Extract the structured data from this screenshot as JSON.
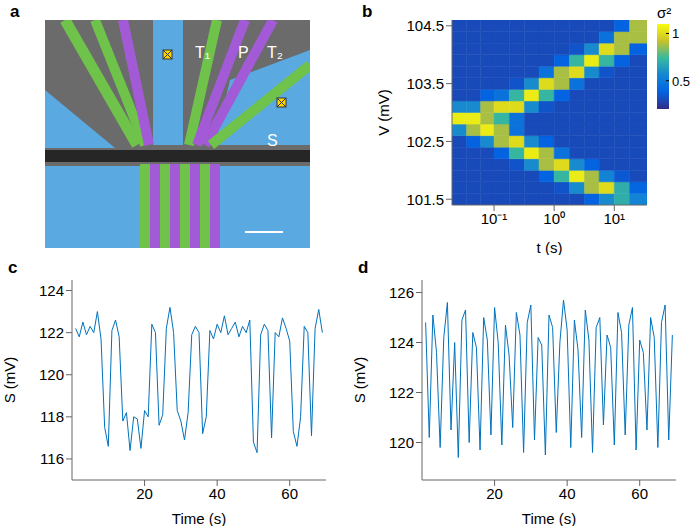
{
  "image": {
    "panel_label": "a",
    "labels": [
      "T₁",
      "P",
      "T₂",
      "S"
    ]
  },
  "chart_data": [
    {
      "type": "heatmap",
      "panel_label": "b",
      "x_label": "t (s)",
      "y_label": "V (mV)",
      "log": "x",
      "xlim": [
        0.02,
        35
      ],
      "xticks": [
        {
          "value": 0.1,
          "label": "10⁻¹"
        },
        {
          "value": 1,
          "label": "10⁰"
        },
        {
          "value": 10,
          "label": "10¹"
        }
      ],
      "ylim": [
        101.4,
        104.6
      ],
      "yticks": [
        101.5,
        102.5,
        103.5,
        104.5
      ],
      "x_edges": [
        0.02,
        0.035,
        0.06,
        0.1,
        0.18,
        0.32,
        0.56,
        1,
        1.8,
        3.2,
        5.6,
        10,
        18,
        35
      ],
      "y_edges": [
        101.4,
        101.6,
        101.8,
        102,
        102.2,
        102.4,
        102.6,
        102.8,
        103,
        103.2,
        103.4,
        103.6,
        103.8,
        104,
        104.2,
        104.4,
        104.6
      ],
      "cells": [
        [
          0.3,
          0.3,
          0.3,
          0.3,
          0.3,
          0.3,
          0.3,
          0.3,
          0.3,
          0.38,
          0.58,
          0.7,
          0.55
        ],
        [
          0.3,
          0.3,
          0.3,
          0.3,
          0.3,
          0.3,
          0.3,
          0.33,
          0.58,
          0.88,
          1.0,
          0.7,
          0.4
        ],
        [
          0.3,
          0.3,
          0.3,
          0.3,
          0.3,
          0.3,
          0.38,
          0.73,
          1.05,
          0.88,
          0.55,
          0.35,
          0.3
        ],
        [
          0.3,
          0.3,
          0.3,
          0.3,
          0.33,
          0.58,
          0.88,
          1.0,
          0.58,
          0.38,
          0.3,
          0.3,
          0.3
        ],
        [
          0.3,
          0.3,
          0.3,
          0.38,
          0.73,
          1.05,
          0.88,
          0.46,
          0.3,
          0.3,
          0.3,
          0.3,
          0.3
        ],
        [
          0.3,
          0.38,
          0.58,
          0.88,
          1.0,
          0.58,
          0.38,
          0.3,
          0.3,
          0.3,
          0.3,
          0.3,
          0.3
        ],
        [
          0.58,
          0.88,
          1.05,
          0.88,
          0.46,
          0.3,
          0.3,
          0.3,
          0.3,
          0.3,
          0.3,
          0.3,
          0.3
        ],
        [
          1.05,
          1.05,
          0.88,
          0.73,
          0.46,
          0.3,
          0.3,
          0.3,
          0.3,
          0.3,
          0.3,
          0.3,
          0.3
        ],
        [
          0.58,
          0.58,
          0.88,
          1.0,
          1.0,
          0.58,
          0.33,
          0.3,
          0.3,
          0.3,
          0.3,
          0.3,
          0.3
        ],
        [
          0.3,
          0.3,
          0.38,
          0.46,
          0.73,
          1.05,
          0.73,
          0.38,
          0.3,
          0.3,
          0.3,
          0.3,
          0.3
        ],
        [
          0.3,
          0.3,
          0.3,
          0.3,
          0.33,
          0.58,
          1.0,
          0.88,
          0.46,
          0.3,
          0.3,
          0.3,
          0.3
        ],
        [
          0.3,
          0.3,
          0.3,
          0.3,
          0.3,
          0.3,
          0.46,
          0.88,
          1.0,
          0.58,
          0.33,
          0.3,
          0.3
        ],
        [
          0.3,
          0.3,
          0.3,
          0.3,
          0.3,
          0.3,
          0.3,
          0.38,
          0.73,
          1.05,
          0.73,
          0.38,
          0.3
        ],
        [
          0.3,
          0.3,
          0.3,
          0.3,
          0.3,
          0.3,
          0.3,
          0.3,
          0.33,
          0.58,
          1.0,
          0.88,
          0.38
        ],
        [
          0.3,
          0.3,
          0.3,
          0.3,
          0.3,
          0.3,
          0.3,
          0.3,
          0.3,
          0.3,
          0.46,
          0.88,
          0.88
        ],
        [
          0.3,
          0.3,
          0.3,
          0.3,
          0.3,
          0.3,
          0.3,
          0.3,
          0.3,
          0.3,
          0.3,
          0.38,
          0.88
        ]
      ],
      "colorbar": {
        "label": "σ²",
        "range": [
          0.2,
          1.1
        ],
        "ticks": [
          0.5,
          1
        ]
      }
    },
    {
      "type": "line",
      "panel_label": "c",
      "x_label": "Time (s)",
      "y_label": "S (mV)",
      "color": "#0072bd",
      "xlim": [
        0,
        70
      ],
      "xticks": [
        20,
        40,
        60
      ],
      "ylim": [
        115,
        124.5
      ],
      "yticks": [
        116,
        118,
        120,
        122,
        124
      ],
      "x": [
        1,
        2,
        3,
        4,
        5,
        6,
        7,
        8,
        9,
        10,
        11,
        12,
        13,
        14,
        15,
        16,
        17,
        18,
        19,
        20,
        21,
        22,
        23,
        24,
        25,
        26,
        27,
        28,
        29,
        30,
        31,
        32,
        33,
        34,
        35,
        36,
        37,
        38,
        39,
        40,
        41,
        42,
        43,
        44,
        45,
        46,
        47,
        48,
        49,
        50,
        51,
        52,
        53,
        54,
        55,
        56,
        57,
        58,
        59,
        60,
        61,
        62,
        63,
        64,
        65,
        66,
        67,
        68,
        69
      ],
      "values": [
        122.2,
        121.8,
        122.5,
        121.9,
        122.3,
        122.0,
        123.0,
        121.7,
        117.5,
        116.6,
        122.1,
        122.6,
        121.8,
        117.8,
        118.2,
        116.4,
        118.0,
        117.9,
        116.5,
        118.3,
        118.0,
        122.4,
        122.0,
        117.6,
        118.1,
        122.2,
        123.2,
        122.0,
        118.3,
        117.8,
        116.9,
        118.2,
        121.9,
        122.3,
        122.0,
        117.2,
        118.0,
        122.1,
        121.7,
        122.4,
        122.0,
        122.8,
        121.9,
        122.2,
        122.5,
        121.8,
        122.3,
        122.0,
        122.6,
        116.8,
        116.3,
        121.9,
        122.4,
        122.1,
        117.0,
        122.0,
        121.8,
        122.7,
        122.2,
        121.6,
        117.3,
        116.6,
        118.0,
        122.3,
        122.0,
        117.1,
        122.2,
        123.1,
        122.0
      ]
    },
    {
      "type": "line",
      "panel_label": "d",
      "x_label": "Time (s)",
      "y_label": "S (mV)",
      "color": "#0072bd",
      "xlim": [
        0,
        70
      ],
      "xticks": [
        20,
        40,
        60
      ],
      "ylim": [
        118.5,
        126.5
      ],
      "yticks": [
        120,
        122,
        124,
        126
      ],
      "x": [
        1,
        2,
        3,
        4,
        5,
        6,
        7,
        8,
        9,
        10,
        11,
        12,
        13,
        14,
        15,
        16,
        17,
        18,
        19,
        20,
        21,
        22,
        23,
        24,
        25,
        26,
        27,
        28,
        29,
        30,
        31,
        32,
        33,
        34,
        35,
        36,
        37,
        38,
        39,
        40,
        41,
        42,
        43,
        44,
        45,
        46,
        47,
        48,
        49,
        50,
        51,
        52,
        53,
        54,
        55,
        56,
        57,
        58,
        59,
        60,
        61,
        62,
        63,
        64,
        65,
        66,
        67,
        68,
        69
      ],
      "values": [
        124.8,
        120.2,
        125.1,
        123.6,
        119.8,
        124.2,
        125.6,
        120.5,
        124.0,
        119.4,
        124.9,
        125.3,
        120.0,
        124.4,
        123.8,
        119.7,
        125.0,
        124.1,
        120.3,
        125.4,
        124.0,
        119.9,
        124.7,
        123.5,
        120.6,
        125.2,
        124.3,
        119.6,
        124.8,
        125.5,
        120.1,
        124.2,
        123.9,
        119.5,
        125.1,
        124.6,
        120.4,
        124.0,
        125.7,
        124.5,
        119.8,
        124.9,
        123.7,
        120.2,
        125.3,
        124.1,
        119.6,
        124.6,
        125.0,
        120.7,
        124.3,
        123.8,
        119.9,
        125.2,
        124.4,
        120.3,
        124.7,
        125.4,
        119.7,
        124.1,
        123.6,
        120.5,
        125.0,
        124.2,
        119.8,
        124.8,
        125.5,
        120.1,
        124.3
      ]
    }
  ]
}
